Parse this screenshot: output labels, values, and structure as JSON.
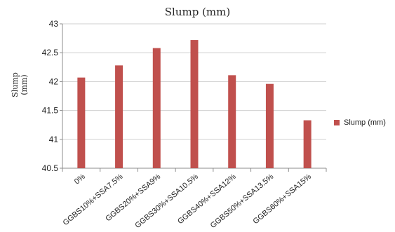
{
  "chart_data": {
    "type": "bar",
    "title": "Slump (mm)",
    "ylabel": "Slump\n(mm)",
    "xlabel": "",
    "categories": [
      "0%",
      "GGBS10%+SSA7.5%",
      "GGBS20%+SSA9%",
      "GGBS30%+SSA10.5%",
      "GGBS40%+SSA12%",
      "GGBS50%+SSA13.5%",
      "GGBS60%+SSA15%"
    ],
    "series": [
      {
        "name": "Slump (mm)",
        "values": [
          42.07,
          42.28,
          42.58,
          42.72,
          42.11,
          41.96,
          41.33
        ]
      }
    ],
    "ylim": [
      40.5,
      43
    ],
    "yticks": [
      "40.5",
      "41",
      "41.5",
      "42",
      "42.5",
      "43"
    ],
    "grid": true,
    "legend_position": "right",
    "colors": {
      "bar": "#c0504d",
      "grid": "#cfcfcf",
      "axis": "#8c8c8c"
    }
  }
}
